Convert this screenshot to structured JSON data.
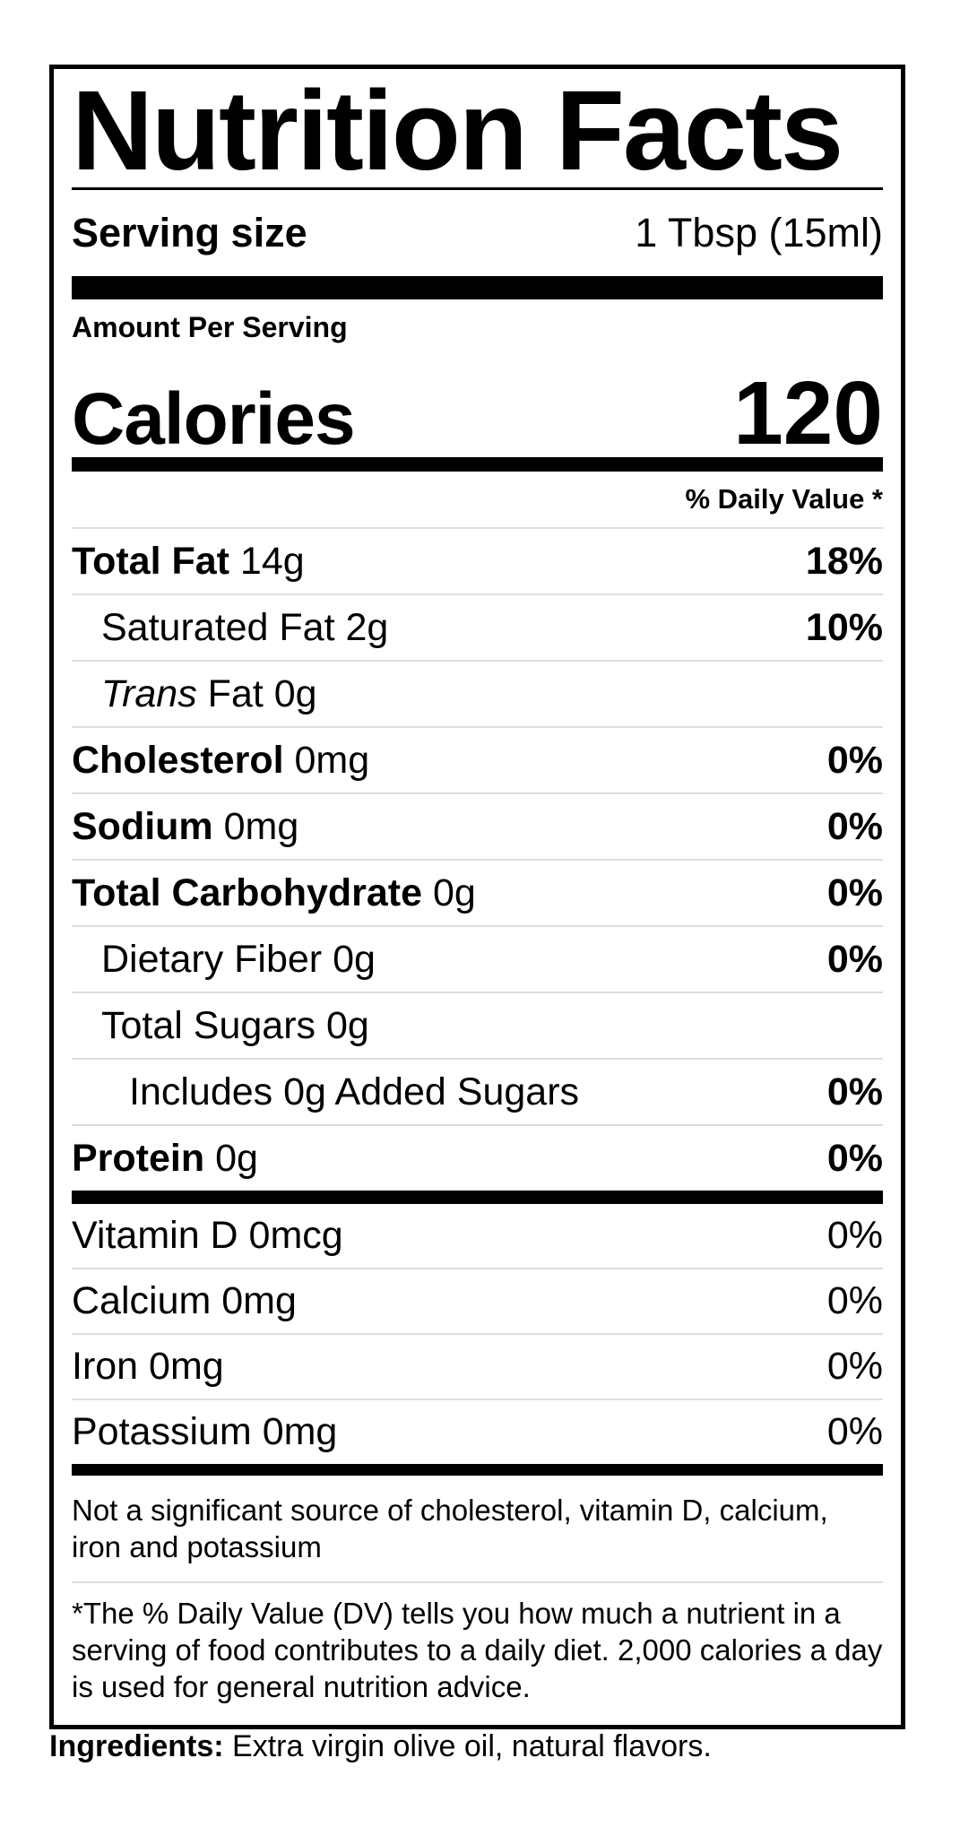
{
  "label": {
    "title": "Nutrition Facts",
    "serving": {
      "name": "Serving size",
      "value": "1 Tbsp (15ml)"
    },
    "amount_per_serving": "Amount Per Serving",
    "calories": {
      "name": "Calories",
      "value": "120"
    },
    "daily_value_header": "% Daily Value *",
    "rows": [
      {
        "strong": "Total Fat",
        "rest": " 14g",
        "dv": "18%"
      },
      {
        "strong": "",
        "rest": "Saturated Fat 2g",
        "dv": "10%"
      },
      {
        "em": "Trans",
        "rest": " Fat 0g",
        "dv": ""
      },
      {
        "strong": "Cholesterol",
        "rest": " 0mg",
        "dv": "0%"
      },
      {
        "strong": "Sodium",
        "rest": " 0mg",
        "dv": "0%"
      },
      {
        "strong": "Total Carbohydrate",
        "rest": " 0g",
        "dv": "0%"
      },
      {
        "strong": "",
        "rest": "Dietary Fiber 0g",
        "dv": "0%"
      },
      {
        "strong": "",
        "rest": "Total Sugars 0g",
        "dv": ""
      },
      {
        "strong": "",
        "rest": "Includes 0g Added Sugars",
        "dv": "0%"
      },
      {
        "strong": "Protein",
        "rest": " 0g",
        "dv": "0%"
      },
      {
        "strong": "",
        "rest": "Vitamin D 0mcg",
        "dv": "0%"
      },
      {
        "strong": "",
        "rest": "Calcium 0mg",
        "dv": "0%"
      },
      {
        "strong": "",
        "rest": "Iron 0mg",
        "dv": "0%"
      },
      {
        "strong": "",
        "rest": "Potassium 0mg",
        "dv": "0%"
      }
    ],
    "footnotes": {
      "not_significant": "Not a significant source of cholesterol, vitamin D, calcium, iron and potassium",
      "daily_value_note": "*The % Daily Value (DV) tells you how much a nutrient in a serving of food contributes to a daily diet. 2,000 calories a day is used for general nutrition advice."
    }
  },
  "ingredients": {
    "heading": "Ingredients:",
    "list": " Extra virgin olive oil, natural flavors."
  },
  "colors": {
    "text": "#000000",
    "background": "#ffffff",
    "separator": "#dedede"
  }
}
